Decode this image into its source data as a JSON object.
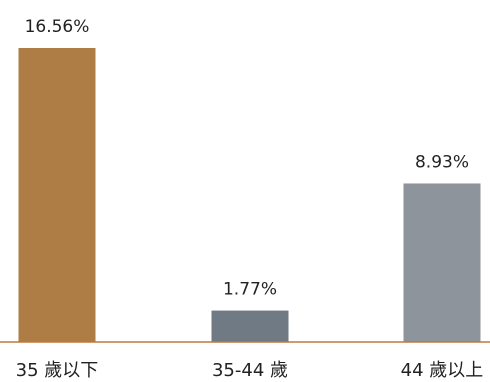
{
  "chart_data": {
    "type": "bar",
    "categories": [
      "35 歲以下",
      "35-44 歲",
      "44 歲以上"
    ],
    "values": [
      16.56,
      1.77,
      8.93
    ],
    "value_labels": [
      "16.56%",
      "1.77%",
      "8.93%"
    ],
    "colors": [
      "#AD7D45",
      "#6F7A85",
      "#8D949B"
    ],
    "axis_color": "#C0783C",
    "title": "",
    "xlabel": "",
    "ylabel": "",
    "ylim": [
      0,
      16.56
    ],
    "grid": false,
    "legend": "none"
  }
}
